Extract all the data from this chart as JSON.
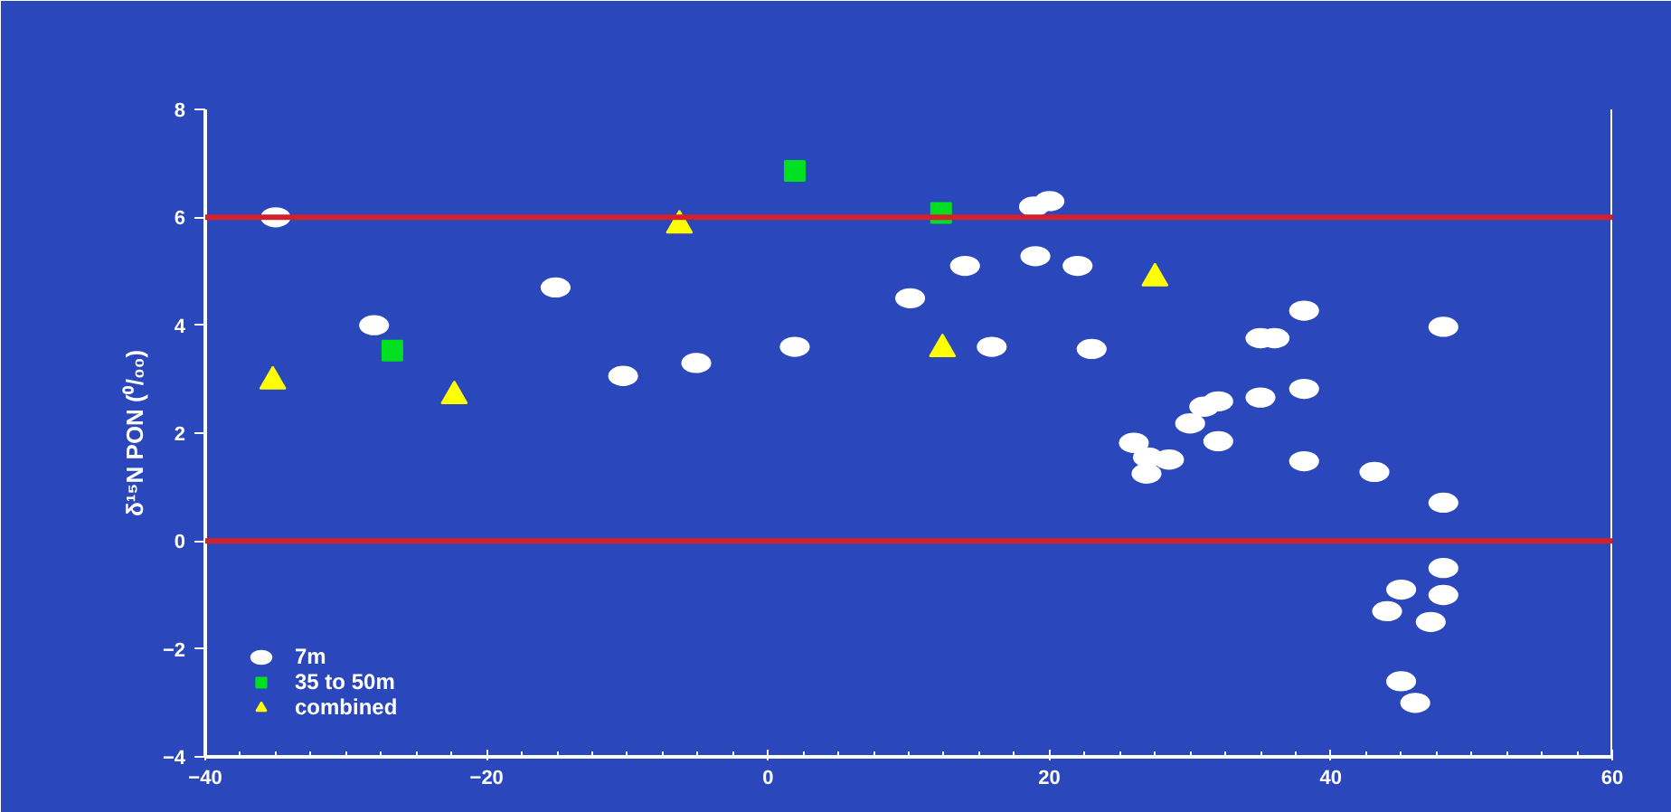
{
  "chart_data": {
    "type": "scatter",
    "ylabel": "δ¹⁵N PON (⁰/₀₀)",
    "xlim": [
      -40,
      60
    ],
    "xticks": [
      -40,
      -20,
      0,
      20,
      40,
      60
    ],
    "ylim": [
      -4,
      8
    ],
    "yticks": [
      -4,
      -2,
      0,
      2,
      4,
      6,
      8
    ],
    "grid": false,
    "legend": "bottom left",
    "series": [
      {
        "name": "7m",
        "color": "#ffffff",
        "marker": "circle",
        "x": [
          -35.0,
          -28.0,
          -15.1,
          -10.3,
          -5.1,
          1.9,
          10.1,
          14.0,
          15.9,
          18.9,
          20.0,
          19.0,
          22.0,
          23.0,
          26.0,
          27.0,
          26.9,
          28.5,
          30.0,
          31.0,
          32.0,
          32.0,
          35.0,
          35.0,
          36.0,
          38.1,
          38.1,
          38.1,
          43.1,
          48.0,
          48.0,
          48.0,
          48.0,
          45.0,
          44.0,
          47.1,
          45.0,
          46.0
        ],
        "values": [
          6.0,
          4.0,
          4.7,
          3.06,
          3.3,
          3.6,
          4.5,
          5.1,
          3.6,
          6.2,
          6.3,
          5.28,
          5.1,
          3.56,
          1.82,
          1.55,
          1.25,
          1.51,
          2.18,
          2.49,
          2.59,
          1.85,
          2.66,
          3.76,
          3.76,
          4.27,
          2.82,
          1.48,
          1.28,
          3.97,
          0.71,
          -0.5,
          -1.0,
          -0.9,
          -1.3,
          -1.5,
          -2.6,
          -3.0
        ]
      },
      {
        "name": "35 to 50m",
        "color": "#00e020",
        "marker": "square",
        "x": [
          -26.7,
          1.9,
          12.3
        ],
        "values": [
          3.53,
          6.86,
          6.08
        ]
      },
      {
        "name": "combined",
        "color": "#ffff00",
        "marker": "triangle",
        "x": [
          -35.2,
          -22.3,
          -6.3,
          12.4,
          27.5
        ],
        "values": [
          2.96,
          2.69,
          5.85,
          3.56,
          4.87
        ]
      }
    ],
    "ref_lines": [
      {
        "axis": "y",
        "value": 6,
        "color": "#d4202a"
      },
      {
        "axis": "y",
        "value": 0,
        "color": "#d4202a"
      }
    ]
  }
}
